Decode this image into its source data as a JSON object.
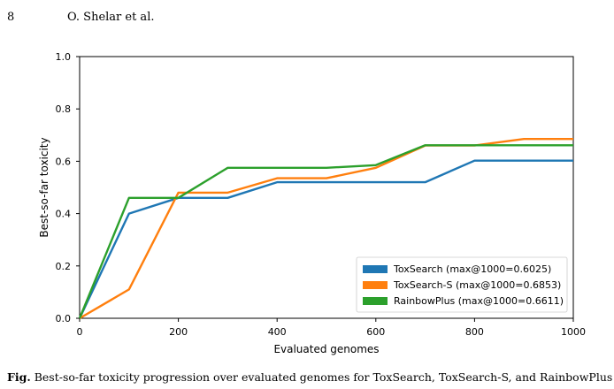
{
  "header": {
    "page_number": "8",
    "authors": "O. Shelar et al."
  },
  "caption": {
    "label": "Fig.",
    "text": "Best-so-far toxicity progression over evaluated genomes for ToxSearch, ToxSearch-S, and RainbowPlus (Best-of"
  },
  "chart_data": {
    "type": "line",
    "xlabel": "Evaluated genomes",
    "ylabel": "Best-so-far toxicity",
    "xlim": [
      0,
      1000
    ],
    "ylim": [
      0,
      1.0
    ],
    "xticks": [
      0,
      200,
      400,
      600,
      800,
      1000
    ],
    "yticks": [
      "0.0",
      "0.2",
      "0.4",
      "0.6",
      "0.8",
      "1.0"
    ],
    "grid": false,
    "legend_position": "bottom-right",
    "series": [
      {
        "name": "ToxSearch (max@1000=0.6025)",
        "color": "#1f77b4",
        "x": [
          0,
          100,
          200,
          300,
          400,
          500,
          600,
          700,
          800,
          900,
          1000
        ],
        "y": [
          0.0,
          0.4,
          0.46,
          0.46,
          0.52,
          0.52,
          0.52,
          0.52,
          0.6025,
          0.6025,
          0.6025
        ]
      },
      {
        "name": "ToxSearch-S (max@1000=0.6853)",
        "color": "#ff7f0e",
        "x": [
          0,
          100,
          200,
          300,
          400,
          500,
          600,
          700,
          800,
          900,
          1000
        ],
        "y": [
          0.0,
          0.11,
          0.48,
          0.48,
          0.535,
          0.535,
          0.575,
          0.66,
          0.66,
          0.6853,
          0.6853
        ]
      },
      {
        "name": "RainbowPlus (max@1000=0.6611)",
        "color": "#2ca02c",
        "x": [
          0,
          100,
          200,
          300,
          400,
          500,
          600,
          700,
          800,
          900,
          1000
        ],
        "y": [
          0.0,
          0.46,
          0.46,
          0.575,
          0.575,
          0.575,
          0.585,
          0.6611,
          0.6611,
          0.6611,
          0.6611
        ]
      }
    ]
  }
}
